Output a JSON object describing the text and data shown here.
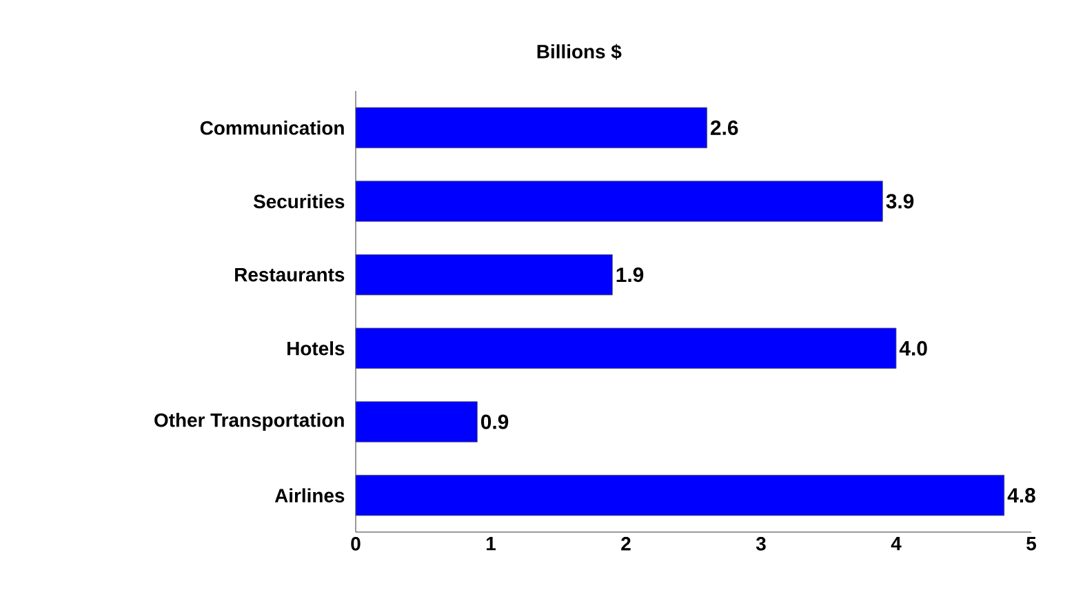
{
  "chart_data": {
    "type": "bar",
    "orientation": "horizontal",
    "annotations": [
      "Billions $"
    ],
    "categories": [
      "Communication",
      "Securities",
      "Restaurants",
      "Hotels",
      "Other Transportation",
      "Airlines"
    ],
    "values": [
      2.6,
      3.9,
      1.9,
      4.0,
      0.9,
      4.8
    ],
    "value_labels": [
      "2.6",
      "3.9",
      "1.9",
      "4.0",
      "0.9",
      "4.8"
    ],
    "color": "#0000ff",
    "xlim": [
      0,
      5
    ],
    "xticks": [
      0,
      1,
      2,
      3,
      4,
      5
    ]
  }
}
